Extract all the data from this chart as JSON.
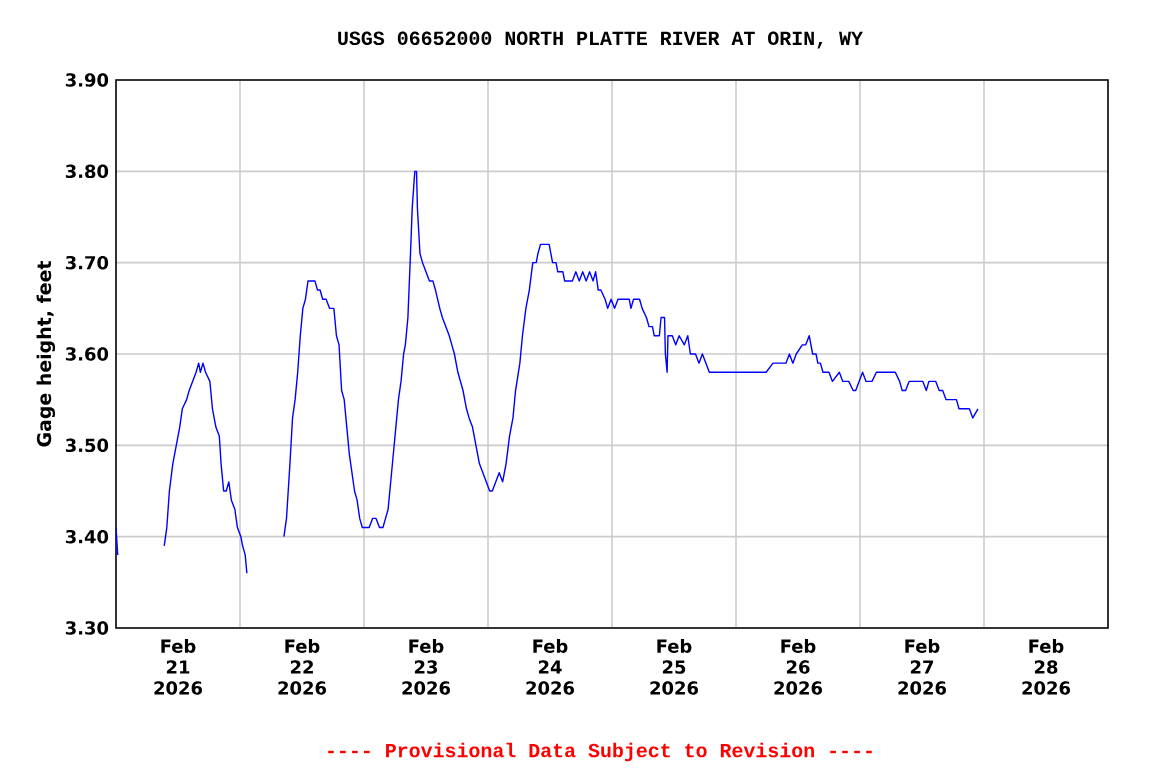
{
  "chart_data": {
    "type": "line",
    "title": "USGS 06652000 NORTH PLATTE RIVER AT ORIN, WY",
    "ylabel": "Gage height, feet",
    "annotations": [
      "---- Provisional Data Subject to Revision ----"
    ],
    "xlim": [
      "2026-02-21",
      "2026-03-01"
    ],
    "xticks": [
      {
        "value": "2026-02-21T12:00",
        "label": "Feb 21 2026"
      },
      {
        "value": "2026-02-22T12:00",
        "label": "Feb 22 2026"
      },
      {
        "value": "2026-02-23T12:00",
        "label": "Feb 23 2026"
      },
      {
        "value": "2026-02-24T12:00",
        "label": "Feb 24 2026"
      },
      {
        "value": "2026-02-25T12:00",
        "label": "Feb 25 2026"
      },
      {
        "value": "2026-02-26T12:00",
        "label": "Feb 26 2026"
      },
      {
        "value": "2026-02-27T12:00",
        "label": "Feb 27 2026"
      },
      {
        "value": "2026-02-28T12:00",
        "label": "Feb 28 2026"
      },
      {
        "value": "2026-02-22",
        "label": null
      },
      {
        "value": "2026-02-23",
        "label": null
      },
      {
        "value": "2026-02-24",
        "label": null
      },
      {
        "value": "2026-02-25",
        "label": null
      },
      {
        "value": "2026-02-26",
        "label": null
      },
      {
        "value": "2026-02-27",
        "label": null
      },
      {
        "value": "2026-02-28",
        "label": null
      }
    ],
    "ylim": [
      3.3,
      3.9
    ],
    "yticks": [
      {
        "value": 3.3,
        "label": "3.30"
      },
      {
        "value": 3.4,
        "label": "3.40"
      },
      {
        "value": 3.5,
        "label": "3.50"
      },
      {
        "value": 3.6,
        "label": "3.60"
      },
      {
        "value": 3.7,
        "label": "3.70"
      },
      {
        "value": 3.8,
        "label": "3.80"
      },
      {
        "value": 3.9,
        "label": "3.90"
      }
    ],
    "grid": true,
    "line_style": "solid",
    "series": [
      {
        "color": "#0000ff",
        "x": [
          "2026-02-21T00:00",
          "2026-02-21T00:20",
          "2026-02-21T05:00",
          "2026-02-21T09:20",
          "2026-02-21T09:50",
          "2026-02-21T10:20",
          "2026-02-21T11:00",
          "2026-02-21T11:40",
          "2026-02-21T12:20",
          "2026-02-21T12:50",
          "2026-02-21T13:40",
          "2026-02-21T14:10",
          "2026-02-21T14:50",
          "2026-02-21T15:30",
          "2026-02-21T16:00",
          "2026-02-21T16:20",
          "2026-02-21T16:50",
          "2026-02-21T17:20",
          "2026-02-21T18:10",
          "2026-02-21T18:40",
          "2026-02-21T19:20",
          "2026-02-21T20:00",
          "2026-02-21T20:20",
          "2026-02-21T20:50",
          "2026-02-21T21:20",
          "2026-02-21T21:50",
          "2026-02-21T22:20",
          "2026-02-21T23:00",
          "2026-02-21T23:30",
          "2026-02-22T00:10",
          "2026-02-22T00:30",
          "2026-02-22T01:00",
          "2026-02-22T01:20",
          "2026-02-22T05:00",
          "2026-02-22T08:30",
          "2026-02-22T09:00",
          "2026-02-22T09:40",
          "2026-02-22T10:10",
          "2026-02-22T10:40",
          "2026-02-22T11:10",
          "2026-02-22T11:40",
          "2026-02-22T12:10",
          "2026-02-22T12:40",
          "2026-02-22T13:10",
          "2026-02-22T13:40",
          "2026-02-22T14:30",
          "2026-02-22T15:00",
          "2026-02-22T15:30",
          "2026-02-22T16:00",
          "2026-02-22T16:40",
          "2026-02-22T17:20",
          "2026-02-22T18:10",
          "2026-02-22T18:40",
          "2026-02-22T19:10",
          "2026-02-22T19:40",
          "2026-02-22T20:10",
          "2026-02-22T20:40",
          "2026-02-22T21:10",
          "2026-02-22T21:40",
          "2026-02-22T22:10",
          "2026-02-22T22:40",
          "2026-02-22T23:10",
          "2026-02-22T23:40",
          "2026-02-23T00:20",
          "2026-02-23T01:00",
          "2026-02-23T01:40",
          "2026-02-23T02:20",
          "2026-02-23T03:00",
          "2026-02-23T03:40",
          "2026-02-23T04:10",
          "2026-02-23T04:40",
          "2026-02-23T05:10",
          "2026-02-23T05:40",
          "2026-02-23T06:10",
          "2026-02-23T06:40",
          "2026-02-23T07:10",
          "2026-02-23T07:40",
          "2026-02-23T08:00",
          "2026-02-23T08:30",
          "2026-02-23T09:00",
          "2026-02-23T09:20",
          "2026-02-23T09:50",
          "2026-02-23T10:10",
          "2026-02-23T10:20",
          "2026-02-23T10:50",
          "2026-02-23T11:20",
          "2026-02-23T12:00",
          "2026-02-23T12:40",
          "2026-02-23T13:20",
          "2026-02-23T13:50",
          "2026-02-23T14:40",
          "2026-02-23T15:10",
          "2026-02-23T15:50",
          "2026-02-23T16:30",
          "2026-02-23T17:00",
          "2026-02-23T17:30",
          "2026-02-23T18:10",
          "2026-02-23T18:40",
          "2026-02-23T19:10",
          "2026-02-23T19:50",
          "2026-02-23T20:20",
          "2026-02-23T21:00",
          "2026-02-23T21:40",
          "2026-02-23T22:20",
          "2026-02-23T23:00",
          "2026-02-23T23:40",
          "2026-02-24T00:20",
          "2026-02-24T00:50",
          "2026-02-24T01:30",
          "2026-02-24T02:10",
          "2026-02-24T02:50",
          "2026-02-24T03:30",
          "2026-02-24T04:10",
          "2026-02-24T04:50",
          "2026-02-24T05:20",
          "2026-02-24T06:10",
          "2026-02-24T06:40",
          "2026-02-24T07:20",
          "2026-02-24T08:00",
          "2026-02-24T08:40",
          "2026-02-24T09:20",
          "2026-02-24T09:40",
          "2026-02-24T10:10",
          "2026-02-24T11:10",
          "2026-02-24T11:50",
          "2026-02-24T12:30",
          "2026-02-24T13:10",
          "2026-02-24T13:30",
          "2026-02-24T14:30",
          "2026-02-24T14:50",
          "2026-02-24T16:20",
          "2026-02-24T17:00",
          "2026-02-24T17:40",
          "2026-02-24T18:20",
          "2026-02-24T19:00",
          "2026-02-24T19:40",
          "2026-02-24T20:20",
          "2026-02-24T20:50",
          "2026-02-24T21:20",
          "2026-02-24T21:50",
          "2026-02-24T22:40",
          "2026-02-24T23:10",
          "2026-02-24T23:50",
          "2026-02-25T00:30",
          "2026-02-25T01:10",
          "2026-02-25T01:50",
          "2026-02-25T03:20",
          "2026-02-25T03:40",
          "2026-02-25T04:10",
          "2026-02-25T05:20",
          "2026-02-25T05:50",
          "2026-02-25T06:40",
          "2026-02-25T07:10",
          "2026-02-25T07:50",
          "2026-02-25T08:10",
          "2026-02-25T08:40",
          "2026-02-25T09:10",
          "2026-02-25T09:30",
          "2026-02-25T10:10",
          "2026-02-25T10:20",
          "2026-02-25T10:40",
          "2026-02-25T10:50",
          "2026-02-25T11:40",
          "2026-02-25T12:20",
          "2026-02-25T13:00",
          "2026-02-25T14:00",
          "2026-02-25T14:40",
          "2026-02-25T15:10",
          "2026-02-25T15:40",
          "2026-02-25T16:10",
          "2026-02-25T16:50",
          "2026-02-25T17:30",
          "2026-02-25T18:10",
          "2026-02-25T18:50",
          "2026-02-25T19:30",
          "2026-02-25T20:10",
          "2026-02-25T21:20",
          "2026-02-26T05:10",
          "2026-02-26T05:50",
          "2026-02-26T07:10",
          "2026-02-26T08:20",
          "2026-02-26T09:00",
          "2026-02-26T09:40",
          "2026-02-26T10:20",
          "2026-02-26T11:00",
          "2026-02-26T11:40",
          "2026-02-26T12:50",
          "2026-02-26T13:30",
          "2026-02-26T14:10",
          "2026-02-26T14:50",
          "2026-02-26T15:30",
          "2026-02-26T15:50",
          "2026-02-26T16:20",
          "2026-02-26T16:50",
          "2026-02-26T18:00",
          "2026-02-26T18:40",
          "2026-02-26T20:00",
          "2026-02-26T20:40",
          "2026-02-26T21:20",
          "2026-02-26T21:50",
          "2026-02-26T22:40",
          "2026-02-26T23:10",
          "2026-02-26T23:50",
          "2026-02-27T00:30",
          "2026-02-27T01:10",
          "2026-02-27T02:20",
          "2026-02-27T03:10",
          "2026-02-27T06:50",
          "2026-02-27T07:40",
          "2026-02-27T08:10",
          "2026-02-27T08:50",
          "2026-02-27T09:30",
          "2026-02-27T12:10",
          "2026-02-27T12:50",
          "2026-02-27T13:20",
          "2026-02-27T14:40",
          "2026-02-27T15:20",
          "2026-02-27T16:00",
          "2026-02-27T16:40",
          "2026-02-27T18:40",
          "2026-02-27T19:10",
          "2026-02-27T21:10",
          "2026-02-27T21:50",
          "2026-02-27T22:50"
        ],
        "values": [
          3.41,
          3.38,
          null,
          3.39,
          3.41,
          3.45,
          3.48,
          3.5,
          3.52,
          3.54,
          3.55,
          3.56,
          3.57,
          3.58,
          3.59,
          3.58,
          3.59,
          3.58,
          3.57,
          3.54,
          3.52,
          3.51,
          3.48,
          3.45,
          3.45,
          3.46,
          3.44,
          3.43,
          3.41,
          3.4,
          3.39,
          3.38,
          3.36,
          null,
          3.4,
          3.42,
          3.48,
          3.53,
          3.55,
          3.58,
          3.62,
          3.65,
          3.66,
          3.68,
          3.68,
          3.68,
          3.67,
          3.67,
          3.66,
          3.66,
          3.65,
          3.65,
          3.62,
          3.61,
          3.56,
          3.55,
          3.52,
          3.49,
          3.47,
          3.45,
          3.44,
          3.42,
          3.41,
          3.41,
          3.41,
          3.42,
          3.42,
          3.41,
          3.41,
          3.42,
          3.43,
          3.46,
          3.49,
          3.52,
          3.55,
          3.57,
          3.6,
          3.61,
          3.64,
          3.71,
          3.76,
          3.8,
          3.8,
          3.76,
          3.71,
          3.7,
          3.69,
          3.68,
          3.68,
          3.67,
          3.65,
          3.64,
          3.63,
          3.62,
          3.61,
          3.6,
          3.58,
          3.57,
          3.56,
          3.54,
          3.53,
          3.52,
          3.5,
          3.48,
          3.47,
          3.46,
          3.45,
          3.45,
          3.46,
          3.47,
          3.46,
          3.48,
          3.51,
          3.53,
          3.56,
          3.59,
          3.62,
          3.65,
          3.67,
          3.7,
          3.7,
          3.71,
          3.72,
          3.72,
          3.72,
          3.7,
          3.7,
          3.69,
          3.69,
          3.68,
          3.68,
          3.69,
          3.68,
          3.69,
          3.68,
          3.69,
          3.68,
          3.69,
          3.67,
          3.67,
          3.66,
          3.65,
          3.66,
          3.65,
          3.66,
          3.66,
          3.66,
          3.65,
          3.66,
          3.66,
          3.65,
          3.64,
          3.63,
          3.63,
          3.62,
          3.62,
          3.62,
          3.64,
          3.64,
          3.6,
          3.58,
          3.62,
          3.62,
          3.61,
          3.62,
          3.61,
          3.62,
          3.6,
          3.6,
          3.6,
          3.59,
          3.6,
          3.59,
          3.58,
          3.58,
          3.58,
          3.58,
          3.58,
          3.58,
          3.59,
          3.59,
          3.59,
          3.59,
          3.6,
          3.59,
          3.6,
          3.61,
          3.61,
          3.62,
          3.6,
          3.6,
          3.59,
          3.59,
          3.58,
          3.58,
          3.57,
          3.58,
          3.57,
          3.57,
          3.57,
          3.56,
          3.56,
          3.57,
          3.58,
          3.57,
          3.57,
          3.58,
          3.58,
          3.57,
          3.56,
          3.56,
          3.57,
          3.57,
          3.56,
          3.57,
          3.57,
          3.56,
          3.56,
          3.55,
          3.55,
          3.54,
          3.54,
          3.53,
          3.54
        ]
      }
    ]
  }
}
